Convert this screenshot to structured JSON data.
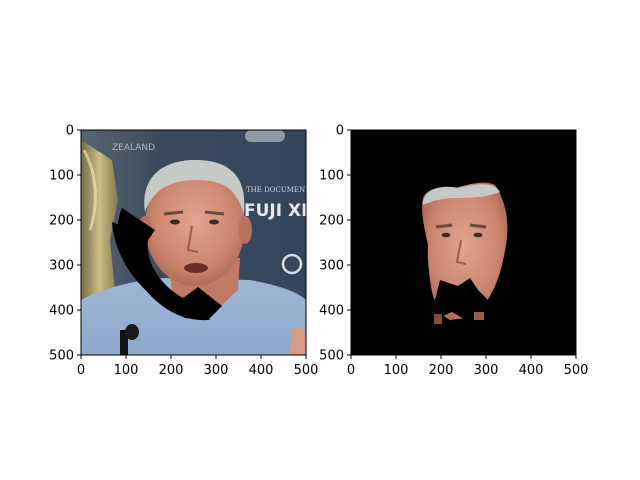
{
  "panels": [
    {
      "id": "left",
      "kind": "image-with-occlusion",
      "xticks": [
        "0",
        "100",
        "200",
        "300",
        "400",
        "500"
      ],
      "yticks": [
        "0",
        "100",
        "200",
        "300",
        "400",
        "500"
      ],
      "xlim": [
        0,
        500
      ],
      "ylim": [
        500,
        0
      ],
      "text_in_image": [
        "ZEALAND",
        "THE DOCUMENT",
        "FUJI XE"
      ]
    },
    {
      "id": "right",
      "kind": "masked-face",
      "xticks": [
        "0",
        "100",
        "200",
        "300",
        "400",
        "500"
      ],
      "yticks": [
        "0",
        "100",
        "200",
        "300",
        "400",
        "500"
      ],
      "xlim": [
        0,
        500
      ],
      "ylim": [
        500,
        0
      ]
    }
  ]
}
